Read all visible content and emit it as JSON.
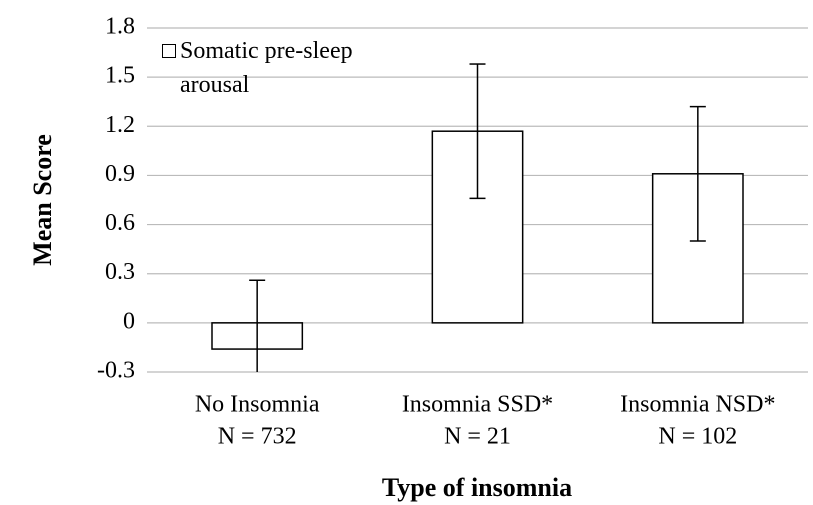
{
  "chart_data": {
    "type": "bar",
    "xlabel": "Type of insomnia",
    "ylabel": "Mean Score",
    "categories": [
      [
        "No Insomnia",
        "N = 732"
      ],
      [
        "Insomnia SSD*",
        "N = 21"
      ],
      [
        "Insomnia NSD*",
        "N = 102"
      ]
    ],
    "series": [
      {
        "name": "Somatic pre-sleep arousal",
        "color": "#ffffff",
        "values": [
          -0.16,
          1.17,
          0.91
        ],
        "errors": [
          0.42,
          0.41,
          0.41
        ]
      }
    ],
    "ylim": [
      -0.3,
      1.8
    ],
    "yticks": [
      -0.3,
      0,
      0.3,
      0.6,
      0.9,
      1.2,
      1.5,
      1.8
    ],
    "grid": true,
    "legend": "upper left"
  }
}
